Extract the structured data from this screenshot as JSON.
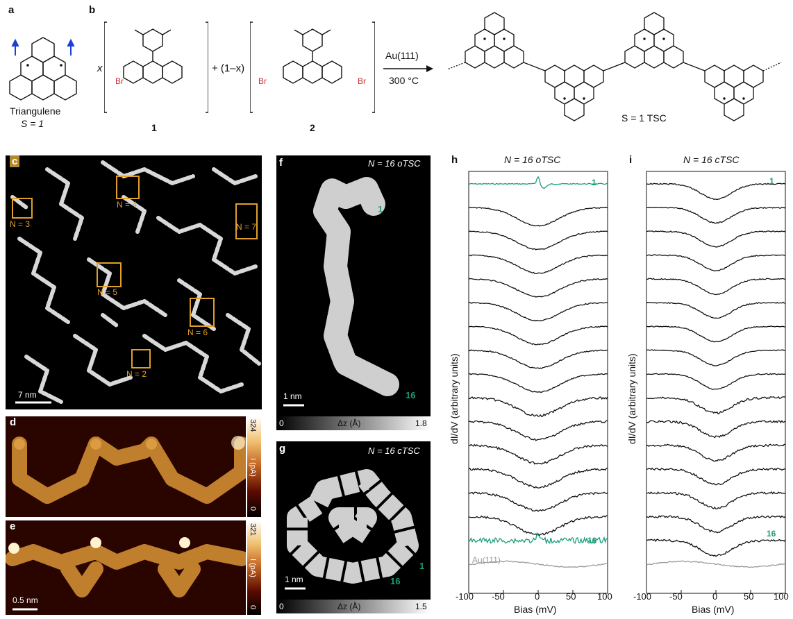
{
  "panels": {
    "a": "a",
    "b": "b",
    "c": "c",
    "d": "d",
    "e": "e",
    "f": "f",
    "g": "g",
    "h": "h",
    "i": "i"
  },
  "scheme": {
    "triangulene_name": "Triangulene",
    "triangulene_spin": "S = 1",
    "x_coef": "x",
    "one_minus_x": "+ (1–x)",
    "br": "Br",
    "compound1": "1",
    "compound2": "2",
    "conditions_top": "Au(111)",
    "conditions_bottom": "300 °C",
    "product": "S = 1 TSC"
  },
  "stm_overview": {
    "labels": [
      "N = 3",
      "N = 4",
      "N = 7",
      "N = 5",
      "N = 6",
      "N = 2"
    ],
    "scalebar": "7 nm"
  },
  "afm_d": {
    "cb_max": "324",
    "cb_min": "0",
    "cb_title": "I (pA)"
  },
  "afm_e": {
    "cb_max": "321",
    "cb_min": "0",
    "cb_title": "I (pA)",
    "scalebar": "0.5 nm"
  },
  "stm_f": {
    "title": "N = 16 oTSC",
    "end_start": "1",
    "end_finish": "16",
    "scalebar": "1 nm",
    "cb_min": "0",
    "cb_title": "Δz (Å)",
    "cb_max": "1.8"
  },
  "stm_g": {
    "title": "N = 16 cTSC",
    "end_start": "1",
    "end_finish": "16",
    "scalebar": "1 nm",
    "cb_min": "0",
    "cb_title": "Δz (Å)",
    "cb_max": "1.5"
  },
  "chart_data": [
    {
      "type": "line",
      "title": "N = 16 oTSC",
      "xlabel": "Bias (mV)",
      "ylabel": "dI/dV (arbitrary units)",
      "xlim": [
        -100,
        100
      ],
      "x_ticks": [
        "-100",
        "-50",
        "0",
        "50",
        "100"
      ],
      "series_labels": {
        "first": "1",
        "last": "16",
        "reference": "Au(111)"
      },
      "n_spectra": 16
    },
    {
      "type": "line",
      "title": "N = 16 cTSC",
      "xlabel": "Bias (mV)",
      "ylabel": "dI/dV (arbitrary units)",
      "xlim": [
        -100,
        100
      ],
      "x_ticks": [
        "-100",
        "-50",
        "0",
        "50",
        "100"
      ],
      "series_labels": {
        "first": "1",
        "last": "16"
      },
      "n_spectra": 16
    }
  ],
  "colors": {
    "accent_green": "#1a9e7a",
    "orange": "#e0a02a",
    "red_br": "#d03030",
    "blue_arrow": "#1b3fd6",
    "gray_ref": "#9a9a9a"
  }
}
